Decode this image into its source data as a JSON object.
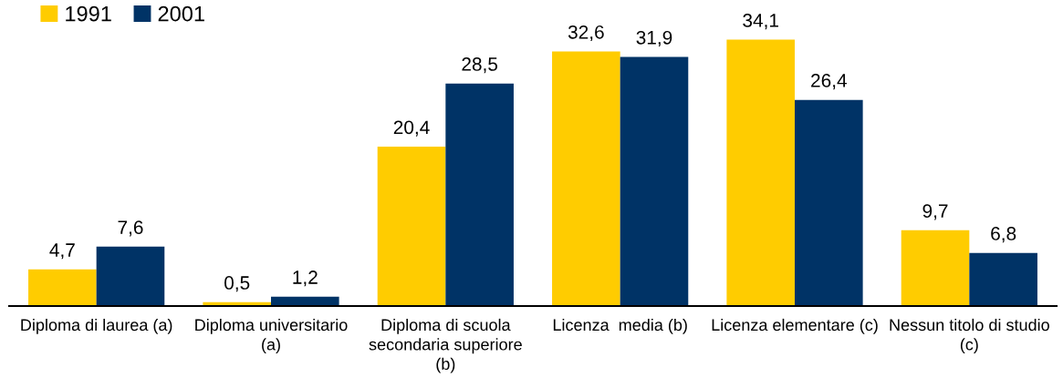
{
  "chart_data": {
    "type": "bar",
    "categories": [
      "Diploma di laurea (a)",
      "Diploma universitario\n(a)",
      "Diploma di scuola\nsecondaria superiore\n(b)",
      "Licenza  media (b)",
      "Licenza elementare (c)",
      "Nessun titolo di studio\n(c)"
    ],
    "series": [
      {
        "name": "1991",
        "color": "#ffcc00",
        "values": [
          4.7,
          0.5,
          20.4,
          32.6,
          34.1,
          9.7
        ],
        "value_labels": [
          "4,7",
          "0,5",
          "20,4",
          "32,6",
          "34,1",
          "9,7"
        ]
      },
      {
        "name": "2001",
        "color": "#003366",
        "values": [
          7.6,
          1.2,
          28.5,
          31.9,
          26.4,
          6.8
        ],
        "value_labels": [
          "7,6",
          "1,2",
          "28,5",
          "31,9",
          "26,4",
          "6,8"
        ]
      }
    ],
    "legend": "top left",
    "tick_labels": "x"
  }
}
